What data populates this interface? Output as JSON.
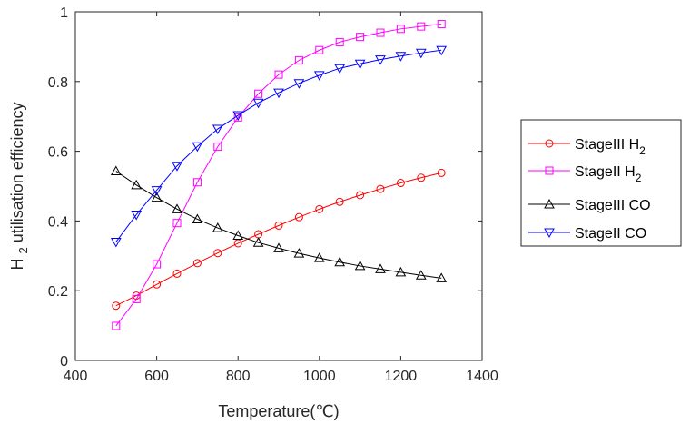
{
  "chart_data": {
    "type": "line",
    "title": "",
    "xlabel": "Temperature(℃)",
    "ylabel": {
      "main": "H",
      "sub": "2",
      "rest": " utilisation efficiency"
    },
    "xlim": [
      400,
      1400
    ],
    "ylim": [
      0,
      1
    ],
    "xticks": [
      400,
      600,
      800,
      1000,
      1200,
      1400
    ],
    "xtick_labels": [
      "400",
      "600",
      "800",
      "1000",
      "1200",
      "1400"
    ],
    "yticks": [
      0,
      0.2,
      0.4,
      0.6,
      0.8,
      1
    ],
    "ytick_labels": [
      "0",
      "0.2",
      "0.4",
      "0.6",
      "0.8",
      "1"
    ],
    "grid": false,
    "legend_position": "outside-right",
    "x": [
      500,
      550,
      600,
      650,
      700,
      750,
      800,
      850,
      900,
      950,
      1000,
      1050,
      1100,
      1150,
      1200,
      1250,
      1300
    ],
    "series": [
      {
        "name": "StageIII H2",
        "label_main": "StageIII H",
        "label_sub": "2",
        "color": "#ff0000",
        "marker": "circle",
        "values": [
          0.157,
          0.186,
          0.218,
          0.249,
          0.279,
          0.308,
          0.336,
          0.362,
          0.387,
          0.411,
          0.434,
          0.455,
          0.474,
          0.492,
          0.509,
          0.524,
          0.538
        ]
      },
      {
        "name": "StageII H2",
        "label_main": "StageII H",
        "label_sub": "2",
        "color": "#ff00ff",
        "marker": "square",
        "values": [
          0.099,
          0.176,
          0.276,
          0.394,
          0.511,
          0.613,
          0.697,
          0.765,
          0.82,
          0.861,
          0.89,
          0.913,
          0.928,
          0.94,
          0.951,
          0.958,
          0.965
        ]
      },
      {
        "name": "StageIII CO",
        "label_main": "StageIII CO",
        "label_sub": "",
        "color": "#000000",
        "marker": "triangle-up",
        "values": [
          0.543,
          0.503,
          0.467,
          0.434,
          0.405,
          0.38,
          0.358,
          0.338,
          0.322,
          0.307,
          0.294,
          0.282,
          0.271,
          0.262,
          0.253,
          0.244,
          0.236
        ]
      },
      {
        "name": "StageII CO",
        "label_main": "StageII CO",
        "label_sub": "",
        "color": "#0000ff",
        "marker": "triangle-down",
        "values": [
          0.34,
          0.418,
          0.488,
          0.558,
          0.614,
          0.664,
          0.703,
          0.739,
          0.768,
          0.795,
          0.818,
          0.838,
          0.851,
          0.863,
          0.873,
          0.882,
          0.89
        ]
      }
    ]
  }
}
